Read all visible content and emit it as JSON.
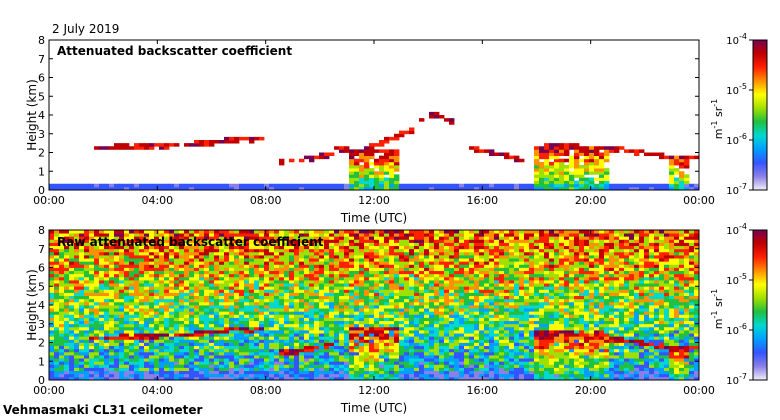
{
  "date": "2 July 2019",
  "footer": "Vehmasmaki CL31 ceilometer",
  "colorbar": {
    "unit_text": "m",
    "unit_exp1": "-1",
    "unit_mid": " sr",
    "unit_exp2": "-1",
    "scale": "log",
    "tick_base": "10",
    "ticks": [
      {
        "exp": "-4",
        "value": 0.0001
      },
      {
        "exp": "-5",
        "value": 1e-05
      },
      {
        "exp": "-6",
        "value": 1e-06
      },
      {
        "exp": "-7",
        "value": 1e-07
      }
    ],
    "colormap": [
      "#f2eef8",
      "#8a80e8",
      "#3355ff",
      "#00a0ff",
      "#00d8d0",
      "#20c040",
      "#a0e000",
      "#ffff00",
      "#ff9000",
      "#ff2000",
      "#c00000",
      "#780050"
    ]
  },
  "chart_data": [
    {
      "type": "heatmap",
      "title": "Attenuated backscatter coefficient",
      "xlabel": "Time (UTC)",
      "ylabel": "Height (km)",
      "xticks": [
        "00:00",
        "04:00",
        "08:00",
        "12:00",
        "16:00",
        "20:00",
        "00:00"
      ],
      "yticks": [
        "0",
        "1",
        "2",
        "3",
        "4",
        "5",
        "6",
        "7",
        "8"
      ],
      "xlim_hours": [
        0,
        24
      ],
      "ylim_km": [
        0,
        8
      ],
      "features": {
        "surface_layer": {
          "from_h": 0,
          "to_h": 24,
          "top_km": 0.4
        },
        "cloud_layers": [
          {
            "t_start_h": 1.5,
            "t_end_h": 8.0,
            "base_km": [
              2.2,
              2.25,
              2.3,
              2.4,
              2.6,
              2.7
            ]
          },
          {
            "t_start_h": 8.5,
            "t_end_h": 10.5,
            "base_km": [
              1.4,
              1.5,
              1.7,
              1.9
            ]
          },
          {
            "t_start_h": 10.5,
            "t_end_h": 13.5,
            "base_km": [
              2.2,
              2.0,
              2.6,
              3.2
            ]
          },
          {
            "t_start_h": 13.5,
            "t_end_h": 15.0,
            "base_km": [
              3.5,
              4.0,
              3.5
            ]
          },
          {
            "t_start_h": 15.5,
            "t_end_h": 17.5,
            "base_km": [
              2.2,
              2.0,
              1.8,
              1.5
            ]
          },
          {
            "t_start_h": 18.0,
            "t_end_h": 24.0,
            "base_km": [
              2.2,
              2.3,
              2.2,
              2.1,
              1.9,
              1.7,
              1.7
            ]
          }
        ],
        "precipitation": [
          {
            "t_start_h": 11.0,
            "t_end_h": 13.0,
            "top_km": 2.1
          },
          {
            "t_start_h": 17.9,
            "t_end_h": 20.6,
            "top_km": 2.3
          },
          {
            "t_start_h": 22.8,
            "t_end_h": 23.6,
            "top_km": 1.8
          }
        ]
      }
    },
    {
      "type": "heatmap",
      "title": "Raw attenuated backscatter coefficient",
      "xlabel": "Time (UTC)",
      "ylabel": "Height (km)",
      "xticks": [
        "00:00",
        "04:00",
        "08:00",
        "12:00",
        "16:00",
        "20:00",
        "00:00"
      ],
      "yticks": [
        "0",
        "1",
        "2",
        "3",
        "4",
        "5",
        "6",
        "7",
        "8"
      ],
      "xlim_hours": [
        0,
        24
      ],
      "ylim_km": [
        0,
        8
      ],
      "features": {
        "background_noise": "high",
        "cloud_layers": [
          {
            "t_start_h": 1.5,
            "t_end_h": 8.0,
            "base_km": [
              2.2,
              2.25,
              2.3,
              2.4,
              2.6,
              2.7
            ]
          },
          {
            "t_start_h": 8.5,
            "t_end_h": 10.5,
            "base_km": [
              1.4,
              1.5,
              1.7,
              1.9
            ]
          },
          {
            "t_start_h": 18.0,
            "t_end_h": 24.0,
            "base_km": [
              2.2,
              2.3,
              2.2,
              2.1,
              1.9,
              1.7,
              1.7
            ]
          }
        ],
        "precipitation": [
          {
            "t_start_h": 11.0,
            "t_end_h": 13.0,
            "top_km": 2.8
          },
          {
            "t_start_h": 17.9,
            "t_end_h": 20.6,
            "top_km": 2.6
          },
          {
            "t_start_h": 22.8,
            "t_end_h": 23.6,
            "top_km": 1.8
          }
        ]
      }
    }
  ]
}
